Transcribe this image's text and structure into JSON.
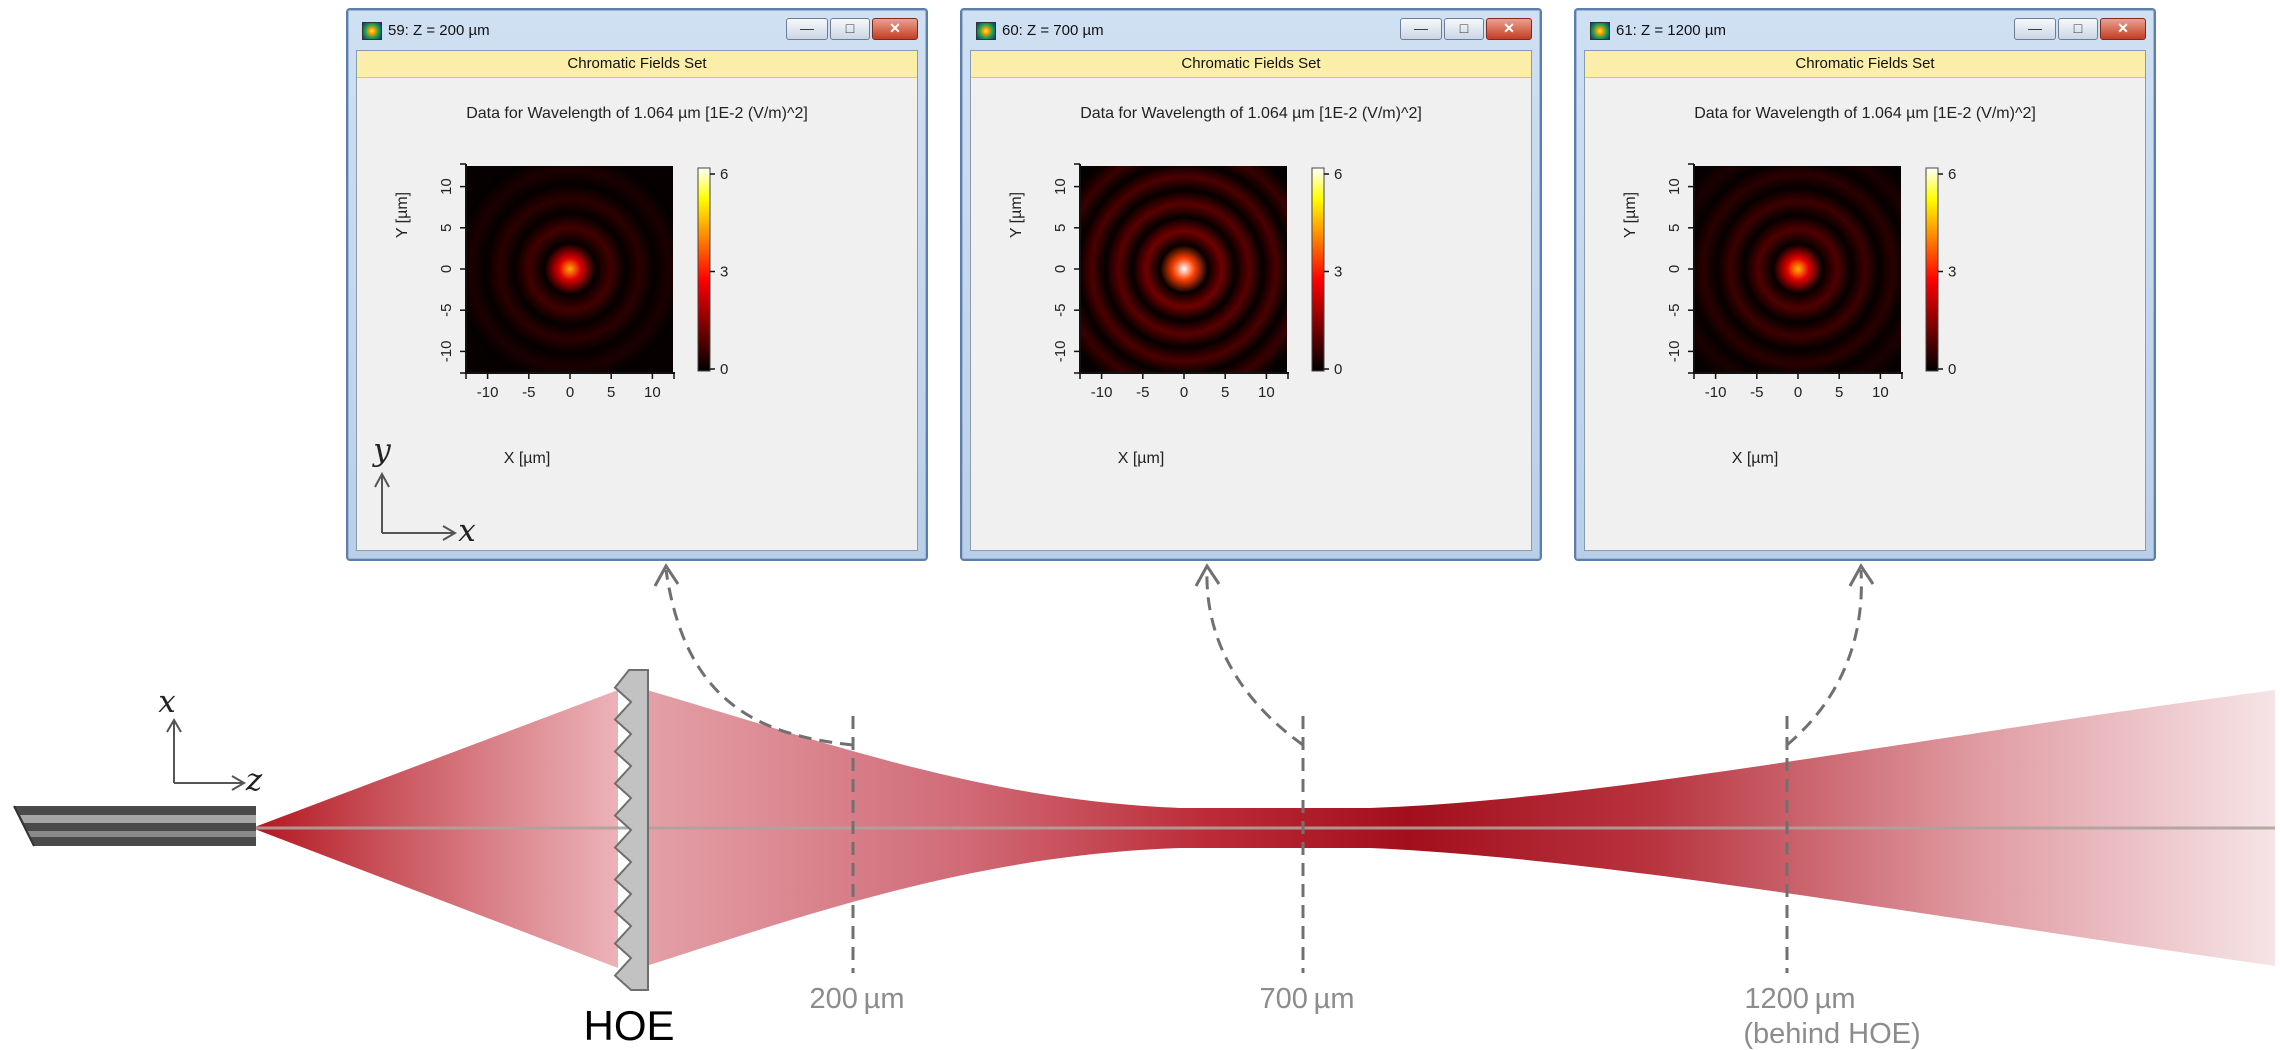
{
  "coordinate_axes": {
    "setup": {
      "horizontal": "z",
      "vertical": "x"
    },
    "window": {
      "horizontal": "x",
      "vertical": "y"
    }
  },
  "element_label": "HOE",
  "planes": [
    {
      "label": "200 µm",
      "sublabel": ""
    },
    {
      "label": "700 µm",
      "sublabel": ""
    },
    {
      "label": "1200 µm",
      "sublabel": "(behind HOE)"
    }
  ],
  "windows": [
    {
      "title": "59: Z = 200 µm",
      "band": "Chromatic Fields Set",
      "caption": "Data for Wavelength of 1.064 µm  [1E-2 (V/m)^2]",
      "xlabel": "X [µm]",
      "ylabel": "Y [µm]",
      "x_ticks": [
        "-10",
        "-5",
        "0",
        "5",
        "10"
      ],
      "y_ticks": [
        "-10",
        "-5",
        "0",
        "5",
        "10"
      ],
      "colorbar_ticks": [
        "0",
        "3",
        "6"
      ],
      "peak": 4.3,
      "rings": [
        {
          "r": 5.0,
          "level": 0.7
        },
        {
          "r": 8.5,
          "level": 0.45
        },
        {
          "r": 12.0,
          "level": 0.3
        }
      ]
    },
    {
      "title": "60: Z = 700 µm",
      "band": "Chromatic Fields Set",
      "caption": "Data for Wavelength of 1.064 µm  [1E-2 (V/m)^2]",
      "xlabel": "X [µm]",
      "ylabel": "Y [µm]",
      "x_ticks": [
        "-10",
        "-5",
        "0",
        "5",
        "10"
      ],
      "y_ticks": [
        "-10",
        "-5",
        "0",
        "5",
        "10"
      ],
      "colorbar_ticks": [
        "0",
        "3",
        "6"
      ],
      "peak": 6.0,
      "rings": [
        {
          "r": 4.6,
          "level": 1.2
        },
        {
          "r": 7.9,
          "level": 0.95
        },
        {
          "r": 11.2,
          "level": 0.8
        },
        {
          "r": 14.4,
          "level": 0.6
        }
      ]
    },
    {
      "title": "61: Z = 1200 µm",
      "band": "Chromatic Fields Set",
      "caption": "Data for Wavelength of 1.064 µm  [1E-2 (V/m)^2]",
      "xlabel": "X [µm]",
      "ylabel": "Y [µm]",
      "x_ticks": [
        "-10",
        "-5",
        "0",
        "5",
        "10"
      ],
      "y_ticks": [
        "-10",
        "-5",
        "0",
        "5",
        "10"
      ],
      "colorbar_ticks": [
        "0",
        "3",
        "6"
      ],
      "peak": 4.4,
      "rings": [
        {
          "r": 4.8,
          "level": 0.85
        },
        {
          "r": 8.2,
          "level": 0.65
        },
        {
          "r": 11.5,
          "level": 0.45
        },
        {
          "r": 14.7,
          "level": 0.3
        }
      ]
    }
  ],
  "colors": {
    "beam": "#b3151f",
    "axis_line": "#b0a29c",
    "dashed": "#707070",
    "label_gray": "#8c8c8c",
    "hoe_fill": "#c2c2c2",
    "window_band": "#fbeea8"
  }
}
